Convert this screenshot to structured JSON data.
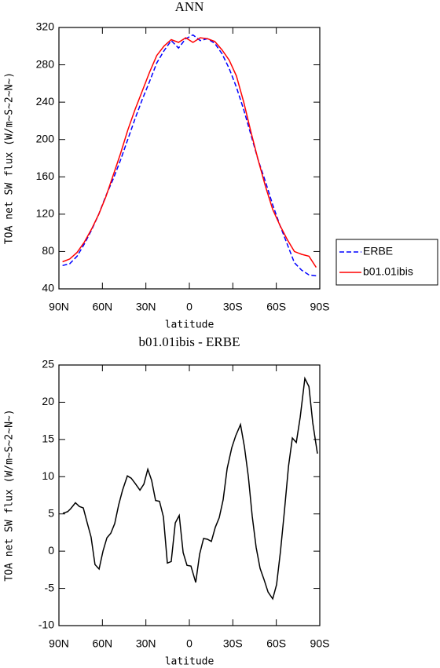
{
  "chart_data": [
    {
      "type": "line",
      "title": "ANN",
      "xlabel": "latitude",
      "ylabel": "TOA net SW flux (W/m~S~2~N~)",
      "x": [
        87.5,
        82.5,
        77.5,
        72.5,
        67.5,
        62.5,
        57.5,
        52.5,
        47.5,
        42.5,
        37.5,
        32.5,
        27.5,
        22.5,
        17.5,
        12.5,
        7.5,
        2.5,
        -2.5,
        -7.5,
        -12.5,
        -17.5,
        -22.5,
        -27.5,
        -32.5,
        -37.5,
        -42.5,
        -47.5,
        -52.5,
        -57.5,
        -62.5,
        -67.5,
        -72.5,
        -77.5,
        -82.5,
        -87.5
      ],
      "series": [
        {
          "name": "ERBE",
          "color": "#0000ff",
          "line_style": "dashed",
          "values": [
            65,
            67,
            75,
            88,
            103,
            120,
            140,
            158,
            178,
            200,
            222,
            243,
            262,
            282,
            295,
            306,
            298,
            308,
            312,
            306,
            308,
            303,
            292,
            276,
            256,
            232,
            205,
            178,
            155,
            130,
            108,
            88,
            68,
            60,
            55,
            54
          ]
        },
        {
          "name": "b01.01ibis",
          "color": "#ff0000",
          "line_style": "solid",
          "values": [
            69,
            72,
            79,
            90,
            104,
            120,
            139,
            162,
            185,
            210,
            232,
            252,
            272,
            290,
            300,
            307,
            304,
            309,
            304,
            309,
            308,
            305,
            296,
            285,
            268,
            240,
            208,
            178,
            150,
            125,
            108,
            93,
            80,
            77,
            75,
            63
          ]
        }
      ],
      "xlim": [
        90,
        -90
      ],
      "xticks": [
        {
          "value": 90,
          "label": "90N"
        },
        {
          "value": 60,
          "label": "60N"
        },
        {
          "value": 30,
          "label": "30N"
        },
        0,
        {
          "value": -30,
          "label": "30S"
        },
        {
          "value": -60,
          "label": "60S"
        },
        {
          "value": -90,
          "label": "90S"
        }
      ],
      "ylim": [
        40,
        320
      ],
      "yticks": [
        40,
        80,
        120,
        160,
        200,
        240,
        280,
        320
      ],
      "legend": "right"
    },
    {
      "type": "line",
      "title": "b01.01ibis - ERBE",
      "xlabel": "latitude",
      "ylabel": "TOA net SW flux (W/m~S~2~N~)",
      "x": [
        87.3,
        84.0,
        81.9,
        78.6,
        75.9,
        73.2,
        70.5,
        67.8,
        65.1,
        62.3,
        59.6,
        56.9,
        54.2,
        51.5,
        48.8,
        46.1,
        42.8,
        40.1,
        37.4,
        34.1,
        31.4,
        28.7,
        26.0,
        23.3,
        20.6,
        17.9,
        15.2,
        12.5,
        9.7,
        7.0,
        4.3,
        1.6,
        -1.1,
        -4.4,
        -7.1,
        -9.8,
        -12.5,
        -15.2,
        -17.9,
        -20.6,
        -23.3,
        -26.1,
        -29.3,
        -32.0,
        -35.3,
        -38.0,
        -40.7,
        -43.4,
        -46.1,
        -48.8,
        -51.5,
        -54.3,
        -57.5,
        -60.2,
        -62.9,
        -65.6,
        -68.4,
        -71.1,
        -73.8,
        -76.5,
        -79.7,
        -82.5,
        -85.2,
        -88.4
      ],
      "series": [
        {
          "color": "#000000",
          "line_style": "solid",
          "values": [
            5.1,
            5.3,
            5.7,
            6.5,
            6.0,
            5.8,
            3.8,
            1.9,
            -1.8,
            -2.4,
            0,
            1.8,
            2.4,
            3.7,
            6.2,
            8.2,
            10.1,
            9.8,
            9.1,
            8.2,
            9.0,
            11.0,
            9.5,
            6.8,
            6.7,
            4.6,
            -1.6,
            -1.4,
            3.8,
            4.8,
            -0.2,
            -1.9,
            -2.0,
            -4.2,
            -0.4,
            1.7,
            1.6,
            1.3,
            3.2,
            4.5,
            6.9,
            11.1,
            13.9,
            15.5,
            17.0,
            14.0,
            10.0,
            4.7,
            0.5,
            -2.3,
            -3.8,
            -5.5,
            -6.4,
            -4.5,
            0,
            5.4,
            11.4,
            15.2,
            14.6,
            18.0,
            23.2,
            22.1,
            17.2,
            13.1
          ]
        }
      ],
      "xlim": [
        90,
        -90
      ],
      "xticks": [
        {
          "value": 90,
          "label": "90N"
        },
        {
          "value": 60,
          "label": "60N"
        },
        {
          "value": 30,
          "label": "30N"
        },
        0,
        {
          "value": -30,
          "label": "30S"
        },
        {
          "value": -60,
          "label": "60S"
        },
        {
          "value": -90,
          "label": "90S"
        }
      ],
      "ylim": [
        -10,
        25
      ],
      "yticks": [
        -10,
        -5,
        0,
        5,
        10,
        15,
        20,
        25
      ]
    }
  ]
}
